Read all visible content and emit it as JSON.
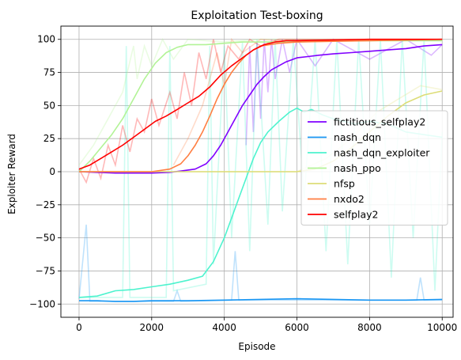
{
  "chart_data": {
    "type": "line",
    "title": "Exploitation Test-boxing",
    "xlabel": "Episode",
    "ylabel": "Exploiter Reward",
    "xlim": [
      -500,
      10300
    ],
    "ylim": [
      -110,
      110
    ],
    "xticks": [
      0,
      2000,
      4000,
      6000,
      8000,
      10000
    ],
    "yticks": [
      -100,
      -75,
      -50,
      -25,
      0,
      25,
      50,
      75,
      100
    ],
    "grid": true,
    "legend": "center-right",
    "series": [
      {
        "name": "fictitious_selfplay2",
        "color": "#8000ff",
        "points": [
          [
            0,
            0
          ],
          [
            1000,
            -1
          ],
          [
            2000,
            -1
          ],
          [
            2500,
            -0.5
          ],
          [
            2800,
            0.5
          ],
          [
            3200,
            2
          ],
          [
            3500,
            6
          ],
          [
            3700,
            12
          ],
          [
            3900,
            20
          ],
          [
            4100,
            30
          ],
          [
            4300,
            40
          ],
          [
            4500,
            50
          ],
          [
            4700,
            58
          ],
          [
            4900,
            66
          ],
          [
            5100,
            72
          ],
          [
            5300,
            77
          ],
          [
            5500,
            80
          ],
          [
            5700,
            83
          ],
          [
            6000,
            86
          ],
          [
            6300,
            87
          ],
          [
            6600,
            88
          ],
          [
            7000,
            89
          ],
          [
            7500,
            90
          ],
          [
            8000,
            91
          ],
          [
            8500,
            92
          ],
          [
            9000,
            93
          ],
          [
            9500,
            95
          ],
          [
            10000,
            96
          ]
        ],
        "raw": [
          [
            4600,
            20
          ],
          [
            4700,
            95
          ],
          [
            4800,
            30
          ],
          [
            4900,
            98
          ],
          [
            5000,
            40
          ],
          [
            5100,
            100
          ],
          [
            5200,
            60
          ],
          [
            5300,
            100
          ],
          [
            5400,
            70
          ],
          [
            5600,
            100
          ],
          [
            5800,
            75
          ],
          [
            6000,
            100
          ],
          [
            6500,
            80
          ],
          [
            7000,
            100
          ],
          [
            8000,
            85
          ],
          [
            9000,
            100
          ],
          [
            9700,
            88
          ],
          [
            10000,
            96
          ]
        ]
      },
      {
        "name": "nash_dqn",
        "color": "#1996f3",
        "points": [
          [
            0,
            -97.5
          ],
          [
            500,
            -97.5
          ],
          [
            1000,
            -98
          ],
          [
            1500,
            -98
          ],
          [
            2000,
            -97.5
          ],
          [
            3000,
            -97.5
          ],
          [
            4000,
            -97
          ],
          [
            5000,
            -96.5
          ],
          [
            6000,
            -96
          ],
          [
            7000,
            -96.5
          ],
          [
            8000,
            -97
          ],
          [
            9000,
            -97
          ],
          [
            10000,
            -96.5
          ]
        ],
        "raw": [
          [
            0,
            -96
          ],
          [
            200,
            -40
          ],
          [
            300,
            -98
          ],
          [
            2600,
            -98
          ],
          [
            2700,
            -90
          ],
          [
            2800,
            -98
          ],
          [
            4200,
            -97
          ],
          [
            4300,
            -60
          ],
          [
            4400,
            -97
          ],
          [
            9300,
            -97
          ],
          [
            9400,
            -80
          ],
          [
            9500,
            -97
          ],
          [
            10000,
            -97
          ]
        ]
      },
      {
        "name": "nash_dqn_exploiter",
        "color": "#4df3ce",
        "points": [
          [
            0,
            -95
          ],
          [
            500,
            -94
          ],
          [
            1000,
            -90
          ],
          [
            1500,
            -89
          ],
          [
            2000,
            -87
          ],
          [
            2500,
            -85
          ],
          [
            3000,
            -82
          ],
          [
            3400,
            -79
          ],
          [
            3700,
            -68
          ],
          [
            4000,
            -50
          ],
          [
            4200,
            -35
          ],
          [
            4400,
            -20
          ],
          [
            4600,
            -5
          ],
          [
            4800,
            10
          ],
          [
            5000,
            22
          ],
          [
            5200,
            30
          ],
          [
            5500,
            38
          ],
          [
            5800,
            45
          ],
          [
            6000,
            48
          ],
          [
            6200,
            45
          ],
          [
            6400,
            47
          ],
          [
            6700,
            43
          ],
          [
            7000,
            40
          ],
          [
            7300,
            38
          ],
          [
            7600,
            36
          ],
          [
            8000,
            38
          ],
          [
            8500,
            36
          ],
          [
            9000,
            30
          ],
          [
            9500,
            28
          ],
          [
            10000,
            26
          ]
        ],
        "raw": [
          [
            0,
            -95
          ],
          [
            1200,
            -95
          ],
          [
            1300,
            95
          ],
          [
            1400,
            -95
          ],
          [
            2400,
            -95
          ],
          [
            2500,
            95
          ],
          [
            2600,
            -90
          ],
          [
            3500,
            -85
          ],
          [
            3600,
            95
          ],
          [
            3700,
            -70
          ],
          [
            4000,
            95
          ],
          [
            4200,
            -50
          ],
          [
            4500,
            98
          ],
          [
            4700,
            -60
          ],
          [
            4900,
            100
          ],
          [
            5200,
            -40
          ],
          [
            5400,
            100
          ],
          [
            5600,
            -30
          ],
          [
            5900,
            100
          ],
          [
            6200,
            -20
          ],
          [
            6500,
            100
          ],
          [
            6800,
            -60
          ],
          [
            7100,
            100
          ],
          [
            7400,
            -70
          ],
          [
            7700,
            100
          ],
          [
            8000,
            -40
          ],
          [
            8300,
            100
          ],
          [
            8600,
            -80
          ],
          [
            8900,
            100
          ],
          [
            9200,
            -50
          ],
          [
            9500,
            100
          ],
          [
            9800,
            -90
          ],
          [
            10000,
            30
          ]
        ]
      },
      {
        "name": "nash_ppo",
        "color": "#b2f396",
        "points": [
          [
            0,
            0
          ],
          [
            300,
            8
          ],
          [
            600,
            18
          ],
          [
            900,
            28
          ],
          [
            1200,
            40
          ],
          [
            1500,
            55
          ],
          [
            1800,
            70
          ],
          [
            2100,
            82
          ],
          [
            2400,
            90
          ],
          [
            2700,
            94
          ],
          [
            3000,
            96
          ],
          [
            3500,
            96
          ],
          [
            4000,
            97
          ],
          [
            4500,
            98
          ],
          [
            5000,
            98
          ],
          [
            6000,
            98
          ],
          [
            7000,
            99
          ],
          [
            8000,
            99
          ],
          [
            9000,
            99
          ],
          [
            10000,
            99
          ]
        ],
        "raw": [
          [
            0,
            5
          ],
          [
            400,
            20
          ],
          [
            800,
            40
          ],
          [
            1200,
            60
          ],
          [
            1500,
            95
          ],
          [
            1600,
            70
          ],
          [
            1800,
            95
          ],
          [
            2000,
            80
          ],
          [
            2300,
            100
          ],
          [
            2600,
            85
          ],
          [
            3000,
            100
          ],
          [
            4000,
            98
          ],
          [
            5000,
            100
          ],
          [
            7000,
            100
          ],
          [
            10000,
            100
          ]
        ]
      },
      {
        "name": "nfsp",
        "color": "#dddd77",
        "points": [
          [
            0,
            0
          ],
          [
            2000,
            0
          ],
          [
            4000,
            0
          ],
          [
            5000,
            0
          ],
          [
            6000,
            0
          ],
          [
            6500,
            2
          ],
          [
            7000,
            8
          ],
          [
            7500,
            18
          ],
          [
            8000,
            30
          ],
          [
            8500,
            42
          ],
          [
            9000,
            52
          ],
          [
            9500,
            58
          ],
          [
            10000,
            61
          ]
        ],
        "raw": [
          [
            0,
            0
          ],
          [
            6000,
            0
          ],
          [
            6800,
            10
          ],
          [
            7500,
            25
          ],
          [
            8200,
            45
          ],
          [
            8800,
            55
          ],
          [
            9400,
            65
          ],
          [
            10000,
            62
          ]
        ]
      },
      {
        "name": "nxdo2",
        "color": "#ff7e41",
        "points": [
          [
            0,
            0
          ],
          [
            1000,
            0
          ],
          [
            2000,
            0
          ],
          [
            2500,
            2
          ],
          [
            2800,
            6
          ],
          [
            3000,
            12
          ],
          [
            3200,
            20
          ],
          [
            3400,
            30
          ],
          [
            3600,
            42
          ],
          [
            3800,
            55
          ],
          [
            4000,
            66
          ],
          [
            4200,
            75
          ],
          [
            4400,
            82
          ],
          [
            4600,
            88
          ],
          [
            4800,
            92
          ],
          [
            5000,
            95
          ],
          [
            5500,
            97
          ],
          [
            6000,
            98
          ],
          [
            7000,
            98.5
          ],
          [
            8000,
            99
          ],
          [
            9000,
            99.5
          ],
          [
            10000,
            100
          ]
        ],
        "raw": [
          [
            2600,
            5
          ],
          [
            3000,
            25
          ],
          [
            3400,
            50
          ],
          [
            3800,
            90
          ],
          [
            4000,
            65
          ],
          [
            4200,
            100
          ],
          [
            4500,
            90
          ],
          [
            5000,
            100
          ],
          [
            6000,
            98
          ],
          [
            10000,
            100
          ]
        ]
      },
      {
        "name": "selfplay2",
        "color": "#ff0000",
        "points": [
          [
            0,
            2
          ],
          [
            300,
            5
          ],
          [
            600,
            10
          ],
          [
            900,
            15
          ],
          [
            1200,
            20
          ],
          [
            1500,
            26
          ],
          [
            1800,
            32
          ],
          [
            2100,
            38
          ],
          [
            2400,
            42
          ],
          [
            2700,
            47
          ],
          [
            3000,
            52
          ],
          [
            3300,
            57
          ],
          [
            3600,
            64
          ],
          [
            3900,
            73
          ],
          [
            4200,
            80
          ],
          [
            4500,
            86
          ],
          [
            4800,
            92
          ],
          [
            5100,
            96
          ],
          [
            5400,
            98
          ],
          [
            5700,
            99
          ],
          [
            6000,
            99
          ],
          [
            7000,
            99.5
          ],
          [
            8000,
            100
          ],
          [
            9000,
            100
          ],
          [
            10000,
            100
          ]
        ],
        "raw": [
          [
            0,
            2
          ],
          [
            200,
            -8
          ],
          [
            400,
            10
          ],
          [
            600,
            -5
          ],
          [
            800,
            20
          ],
          [
            1000,
            5
          ],
          [
            1200,
            35
          ],
          [
            1400,
            15
          ],
          [
            1600,
            40
          ],
          [
            1800,
            30
          ],
          [
            2000,
            55
          ],
          [
            2200,
            35
          ],
          [
            2500,
            60
          ],
          [
            2700,
            40
          ],
          [
            2900,
            75
          ],
          [
            3100,
            50
          ],
          [
            3300,
            90
          ],
          [
            3500,
            70
          ],
          [
            3700,
            100
          ],
          [
            3900,
            75
          ],
          [
            4100,
            95
          ],
          [
            4400,
            85
          ],
          [
            4700,
            100
          ],
          [
            5000,
            95
          ],
          [
            5500,
            100
          ],
          [
            10000,
            100
          ]
        ]
      }
    ]
  }
}
